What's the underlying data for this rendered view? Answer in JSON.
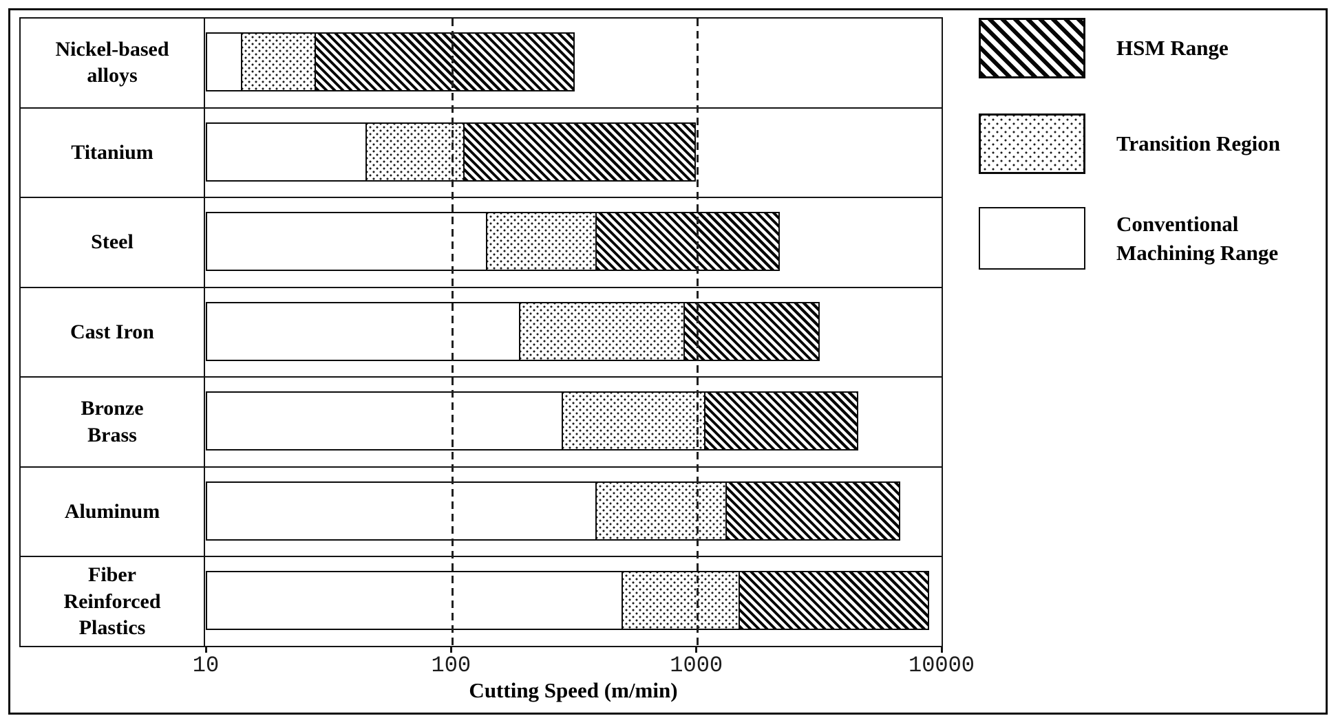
{
  "axis": {
    "title": "Cutting Speed (m/min)",
    "scale": "log",
    "min": 10,
    "max": 10000,
    "ticks": [
      10,
      100,
      1000,
      10000
    ],
    "tick_labels": [
      "10",
      "100",
      "1000",
      "10000"
    ],
    "gridlines_at": [
      100,
      1000
    ]
  },
  "legend": {
    "position": "top-right",
    "items": [
      {
        "name": "hsm",
        "pattern": "hatch",
        "label_lines": [
          "HSM Range"
        ]
      },
      {
        "name": "transition",
        "pattern": "dots",
        "label_lines": [
          "Transition Region"
        ]
      },
      {
        "name": "conventional",
        "pattern": "plain",
        "label_lines": [
          "Conventional",
          "Machining Range"
        ]
      }
    ]
  },
  "chart_data": {
    "type": "bar",
    "subtype": "horizontal-stacked-range",
    "x_scale": "log",
    "xlabel": "Cutting Speed (m/min)",
    "xlim": [
      10,
      10000
    ],
    "x_gridlines": [
      100,
      1000
    ],
    "grid": "dashed-vertical",
    "legend_position": "top-right",
    "start_value": 10,
    "categories": [
      "Nickel-based alloys",
      "Titanium",
      "Steel",
      "Cast Iron",
      "Bronze Brass",
      "Aluminum",
      "Fiber Reinforced Plastics"
    ],
    "series": [
      {
        "name": "Conventional Machining Range",
        "pattern": "plain",
        "ranges_m_min": [
          [
            10,
            14
          ],
          [
            10,
            45
          ],
          [
            10,
            140
          ],
          [
            10,
            190
          ],
          [
            10,
            285
          ],
          [
            10,
            390
          ],
          [
            10,
            500
          ]
        ]
      },
      {
        "name": "Transition Region",
        "pattern": "dots",
        "ranges_m_min": [
          [
            14,
            28
          ],
          [
            45,
            113
          ],
          [
            140,
            390
          ],
          [
            190,
            890
          ],
          [
            285,
            1080
          ],
          [
            390,
            1320
          ],
          [
            500,
            1500
          ]
        ]
      },
      {
        "name": "HSM Range",
        "pattern": "hatch",
        "ranges_m_min": [
          [
            28,
            320
          ],
          [
            113,
            1000
          ],
          [
            390,
            2200
          ],
          [
            890,
            3200
          ],
          [
            1080,
            4600
          ],
          [
            1320,
            6800
          ],
          [
            1500,
            8900
          ]
        ]
      }
    ],
    "rows": [
      {
        "label_lines": [
          "Nickel-based",
          "alloys"
        ],
        "conventional_end": 14,
        "transition_end": 28,
        "hsm_end": 320
      },
      {
        "label_lines": [
          "Titanium"
        ],
        "conventional_end": 45,
        "transition_end": 113,
        "hsm_end": 1000
      },
      {
        "label_lines": [
          "Steel"
        ],
        "conventional_end": 140,
        "transition_end": 390,
        "hsm_end": 2200
      },
      {
        "label_lines": [
          "Cast Iron"
        ],
        "conventional_end": 190,
        "transition_end": 890,
        "hsm_end": 3200
      },
      {
        "label_lines": [
          "Bronze",
          "Brass"
        ],
        "conventional_end": 285,
        "transition_end": 1080,
        "hsm_end": 4600
      },
      {
        "label_lines": [
          "Aluminum"
        ],
        "conventional_end": 390,
        "transition_end": 1320,
        "hsm_end": 6800
      },
      {
        "label_lines": [
          "Fiber",
          "Reinforced",
          "Plastics"
        ],
        "conventional_end": 500,
        "transition_end": 1500,
        "hsm_end": 8900
      }
    ]
  }
}
